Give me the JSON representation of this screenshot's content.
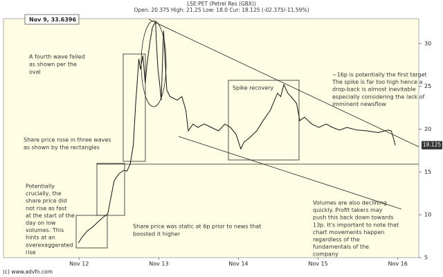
{
  "chart_data": {
    "type": "line",
    "title": "LSE:PET (Petrel Res (GBX))",
    "subtitle": "Open: 20.375 High: 21.25 Low: 18.0 Cur: 18.125 (-02.375/-11.59%)",
    "cursor_label": "Nov 9, 33.6396",
    "last_price": 18.125,
    "source": "(c) www.advfn.com",
    "color": "#111111",
    "grid": false,
    "xlim": [
      11.05,
      16.29
    ],
    "ylim": [
      5,
      32.9
    ],
    "xticks": [
      {
        "value": 12,
        "label": "Nov 12"
      },
      {
        "value": 13,
        "label": "Nov 13"
      },
      {
        "value": 14,
        "label": "Nov 14"
      },
      {
        "value": 15,
        "label": "Nov 15"
      },
      {
        "value": 16,
        "label": "Nov 16"
      }
    ],
    "yticks": [
      5,
      10,
      15,
      20,
      25,
      30
    ],
    "x": [
      11.99,
      12.03,
      12.1,
      12.16,
      12.23,
      12.3,
      12.36,
      12.4,
      12.44,
      12.5,
      12.56,
      12.6,
      12.64,
      12.68,
      12.71,
      12.75,
      12.77,
      12.8,
      12.83,
      12.85,
      12.89,
      12.92,
      12.96,
      12.97,
      12.99,
      13.01,
      13.03,
      13.06,
      13.1,
      13.14,
      13.23,
      13.29,
      13.34,
      13.37,
      13.43,
      13.49,
      13.57,
      13.66,
      13.75,
      13.83,
      13.9,
      13.97,
      14.03,
      14.07,
      14.14,
      14.23,
      14.31,
      14.4,
      14.49,
      14.53,
      14.57,
      14.62,
      14.66,
      14.73,
      14.77,
      14.83,
      14.92,
      15.01,
      15.1,
      15.18,
      15.27,
      15.36,
      15.49,
      15.62,
      15.75,
      15.88,
      15.92,
      15.97
    ],
    "values": [
      6.7,
      7.3,
      8.1,
      8.5,
      9.1,
      9.7,
      10.1,
      12.1,
      14.0,
      14.8,
      15.2,
      15.1,
      15.9,
      18.1,
      23.0,
      28.2,
      27.0,
      28.6,
      25.4,
      27.4,
      30.2,
      31.9,
      32.5,
      30.2,
      27.0,
      25.4,
      23.4,
      31.5,
      24.6,
      23.8,
      23.4,
      23.8,
      22.2,
      19.8,
      20.6,
      20.2,
      20.6,
      20.2,
      19.8,
      20.6,
      20.2,
      19.4,
      17.7,
      18.5,
      19.0,
      19.8,
      21.0,
      22.2,
      24.2,
      23.8,
      25.2,
      24.2,
      23.8,
      23.0,
      21.0,
      21.4,
      20.6,
      20.2,
      20.6,
      20.2,
      19.9,
      20.2,
      19.9,
      19.8,
      19.6,
      19.9,
      19.8,
      18.125
    ],
    "annotations": [
      {
        "lines": [
          "A fourth wave failed",
          "as shown per the",
          "oval"
        ]
      },
      {
        "lines": [
          "Share price rose in three waves",
          "as shown by the rectangles"
        ]
      },
      {
        "lines": [
          "Potentially",
          "crucially, the",
          "share price did",
          "not rise as fast",
          "at the start of the",
          "day on low",
          "volumes. This",
          "hints at an",
          "overexaggerated",
          "rise"
        ]
      },
      {
        "lines": [
          "Share price was static at 6p prior to news that",
          "boosted it higher"
        ]
      },
      {
        "lines": [
          "Spike recovery"
        ]
      },
      {
        "lines": [
          "~16p is potentially the first target",
          "The spike is far too high hence a",
          "drop-back is almost inevitable",
          "especially considering the lack of",
          "imminent newsflow"
        ]
      },
      {
        "lines": [
          "Volumes are also declining",
          "quickly. Profit takers may",
          "push this back down towards",
          "13p. It's important to note that",
          "chart movements happen",
          "regardless of the",
          "fundamentals of the",
          "company"
        ]
      }
    ]
  }
}
